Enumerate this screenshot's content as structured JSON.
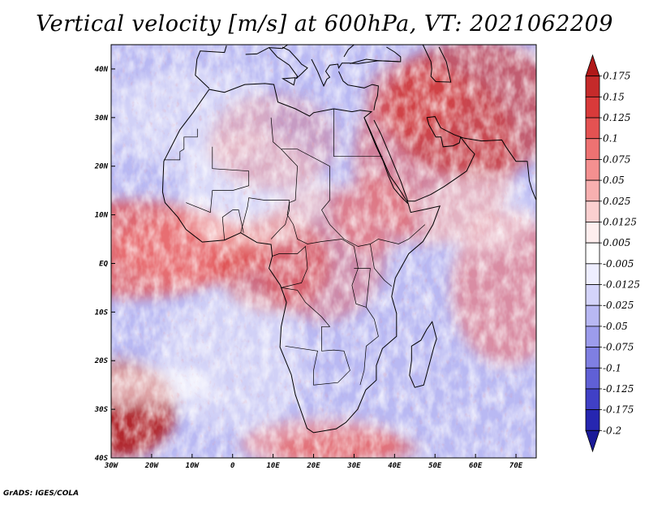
{
  "title": "Vertical velocity [m/s] at 600hPa, VT: 2021062209",
  "credit": "GrADS: IGES/COLA",
  "map": {
    "lon_labels": [
      "30W",
      "20W",
      "10W",
      "0",
      "10E",
      "20E",
      "30E",
      "40E",
      "50E",
      "60E",
      "70E"
    ],
    "lat_labels": [
      "40N",
      "30N",
      "20N",
      "10N",
      "EQ",
      "10S",
      "20S",
      "30S",
      "40S"
    ],
    "field": "vertical velocity",
    "level": "600hPa",
    "units": "m/s",
    "valid_time": "2021062209"
  },
  "colorbar": {
    "labels": [
      "0.175",
      "0.15",
      "0.125",
      "0.1",
      "0.075",
      "0.05",
      "0.025",
      "0.0125",
      "0.005",
      "-0.005",
      "-0.0125",
      "-0.025",
      "-0.05",
      "-0.075",
      "-0.1",
      "-0.125",
      "-0.175",
      "-0.2"
    ],
    "colors": [
      "#b01818",
      "#c52a2a",
      "#d83a3a",
      "#e45252",
      "#ee7272",
      "#f49090",
      "#f8b0b0",
      "#fbd0d0",
      "#feeeee",
      "#ffffff",
      "#eeeeff",
      "#d4d4fa",
      "#b8b8f3",
      "#9c9cec",
      "#7f7fe2",
      "#6060d6",
      "#4040c6",
      "#2626b0",
      "#1a1a98"
    ]
  }
}
